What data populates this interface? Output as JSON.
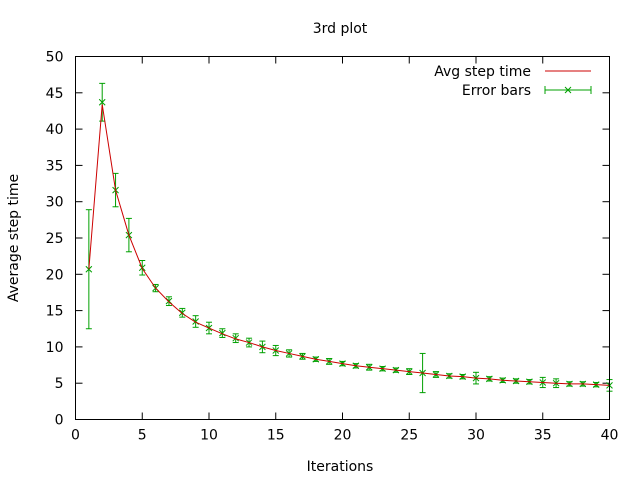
{
  "chart_data": {
    "type": "line",
    "title": "3rd plot",
    "xlabel": "Iterations",
    "ylabel": "Average step time",
    "xlim": [
      0,
      40
    ],
    "ylim": [
      0,
      50
    ],
    "xticks": [
      0,
      5,
      10,
      15,
      20,
      25,
      30,
      35,
      40
    ],
    "yticks": [
      0,
      5,
      10,
      15,
      20,
      25,
      30,
      35,
      40,
      45,
      50
    ],
    "grid": false,
    "legend_position": "top-right",
    "series": [
      {
        "name": "Avg step time",
        "color": "#cc0000",
        "style": "line",
        "x": [
          1,
          2,
          3,
          4,
          5,
          6,
          7,
          8,
          9,
          10,
          11,
          12,
          13,
          14,
          15,
          16,
          17,
          18,
          19,
          20,
          21,
          22,
          23,
          24,
          25,
          26,
          27,
          28,
          29,
          30,
          31,
          32,
          33,
          34,
          35,
          36,
          37,
          38,
          39,
          40
        ],
        "y": [
          20.7,
          43.4,
          31.6,
          25.4,
          20.8,
          18.1,
          16.2,
          14.6,
          13.4,
          12.6,
          11.8,
          11.1,
          10.6,
          10.0,
          9.5,
          9.1,
          8.7,
          8.3,
          8.0,
          7.7,
          7.4,
          7.2,
          7.0,
          6.8,
          6.6,
          6.4,
          6.2,
          6.0,
          5.9,
          5.7,
          5.6,
          5.4,
          5.3,
          5.2,
          5.1,
          5.0,
          4.9,
          4.9,
          4.8,
          4.7
        ]
      },
      {
        "name": "Error bars",
        "color": "#00a000",
        "style": "errorbars",
        "x": [
          1,
          2,
          3,
          4,
          5,
          6,
          7,
          8,
          9,
          10,
          11,
          12,
          13,
          14,
          15,
          16,
          17,
          18,
          19,
          20,
          21,
          22,
          23,
          24,
          25,
          26,
          27,
          28,
          29,
          30,
          31,
          32,
          33,
          34,
          35,
          36,
          37,
          38,
          39,
          40
        ],
        "y": [
          20.7,
          43.7,
          31.6,
          25.4,
          20.9,
          18.1,
          16.3,
          14.7,
          13.5,
          12.6,
          11.9,
          11.2,
          10.6,
          10.0,
          9.5,
          9.1,
          8.7,
          8.3,
          8.0,
          7.7,
          7.4,
          7.2,
          7.0,
          6.8,
          6.6,
          6.4,
          6.2,
          6.0,
          5.9,
          5.7,
          5.6,
          5.4,
          5.3,
          5.2,
          5.1,
          5.0,
          4.9,
          4.9,
          4.8,
          4.7
        ],
        "err": [
          8.2,
          2.6,
          2.3,
          2.3,
          1.0,
          0.5,
          0.6,
          0.6,
          0.8,
          0.8,
          0.6,
          0.6,
          0.6,
          0.8,
          0.7,
          0.5,
          0.4,
          0.3,
          0.4,
          0.3,
          0.3,
          0.4,
          0.3,
          0.3,
          0.4,
          2.7,
          0.4,
          0.3,
          0.3,
          0.8,
          0.3,
          0.3,
          0.3,
          0.3,
          0.7,
          0.6,
          0.3,
          0.3,
          0.3,
          0.8
        ]
      }
    ]
  }
}
